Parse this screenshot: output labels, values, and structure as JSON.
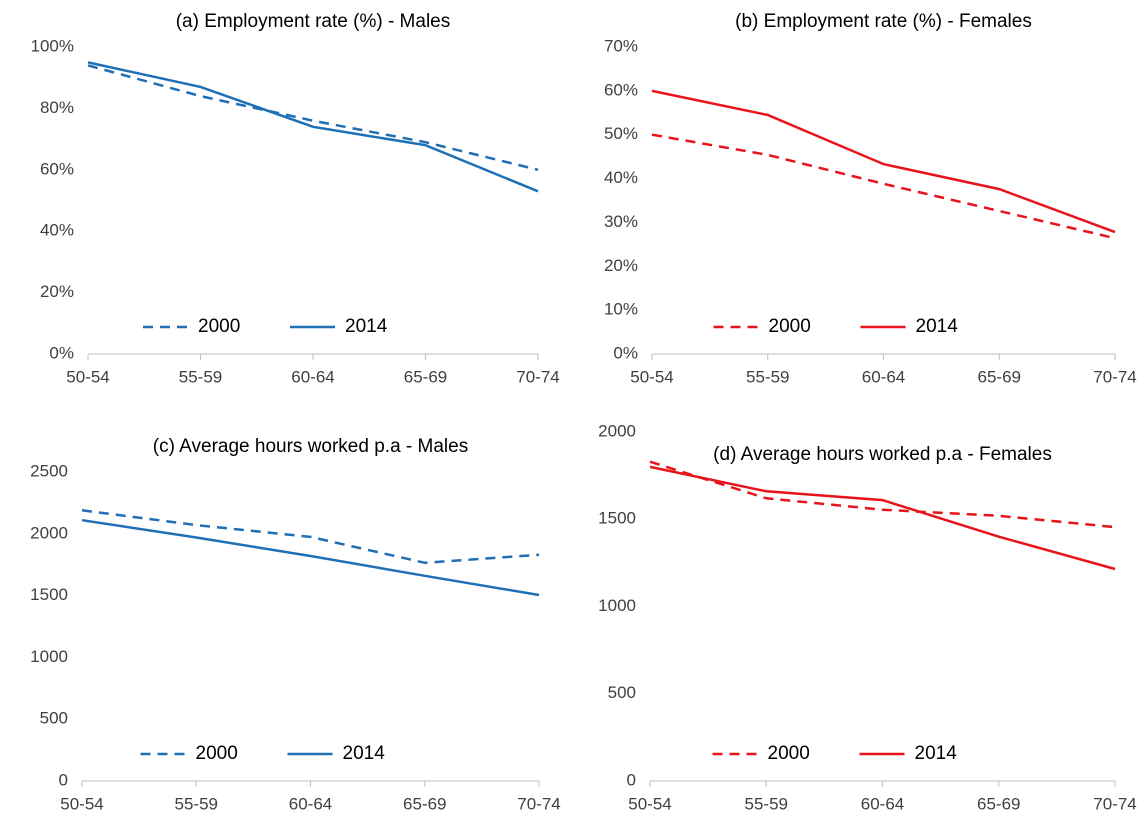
{
  "chart_data": [
    {
      "type": "line",
      "title": "(a) Employment rate (%) - Males",
      "categories": [
        "50-54",
        "55-59",
        "60-64",
        "65-69",
        "70-74"
      ],
      "series": [
        {
          "name": "2000",
          "color": "#1f6fb5",
          "line_style": "dashed",
          "values": [
            94,
            84,
            76,
            69,
            60
          ]
        },
        {
          "name": "2014",
          "color": "#1f6fb5",
          "line_style": "solid",
          "values": [
            95,
            87,
            74,
            68,
            53
          ]
        }
      ],
      "ylim": [
        0,
        100
      ],
      "yticks": [
        {
          "value": 0,
          "label": "0%"
        },
        {
          "value": 20,
          "label": "20%"
        },
        {
          "value": 40,
          "label": "40%"
        },
        {
          "value": 60,
          "label": "60%"
        },
        {
          "value": 80,
          "label": "80%"
        },
        {
          "value": 100,
          "label": "100%"
        }
      ],
      "grid": false,
      "legend": "lower center"
    },
    {
      "type": "line",
      "title": "(b) Employment rate (%) - Females",
      "categories": [
        "50-54",
        "55-59",
        "60-64",
        "65-69",
        "70-74"
      ],
      "series": [
        {
          "name": "2000",
          "color": "#e8141b",
          "line_style": "dashed",
          "values": [
            50,
            45.4,
            38.8,
            32.6,
            26.4
          ]
        },
        {
          "name": "2014",
          "color": "#e8141b",
          "line_style": "solid",
          "values": [
            60,
            54.5,
            43.3,
            37.6,
            27.8
          ]
        }
      ],
      "ylim": [
        0,
        70
      ],
      "yticks": [
        {
          "value": 0,
          "label": "0%"
        },
        {
          "value": 10,
          "label": "10%"
        },
        {
          "value": 20,
          "label": "20%"
        },
        {
          "value": 30,
          "label": "30%"
        },
        {
          "value": 40,
          "label": "40%"
        },
        {
          "value": 50,
          "label": "50%"
        },
        {
          "value": 60,
          "label": "60%"
        },
        {
          "value": 70,
          "label": "70%"
        }
      ],
      "grid": false,
      "legend": "lower center"
    },
    {
      "type": "line",
      "title": "(c) Average hours worked p.a - Males",
      "categories": [
        "50-54",
        "55-59",
        "60-64",
        "65-69",
        "70-74"
      ],
      "series": [
        {
          "name": "2000",
          "color": "#1f6fb5",
          "line_style": "dashed",
          "values": [
            2190,
            2070,
            1975,
            1765,
            1830
          ]
        },
        {
          "name": "2014",
          "color": "#1f6fb5",
          "line_style": "solid",
          "values": [
            2110,
            1970,
            1820,
            1660,
            1505
          ]
        }
      ],
      "ylim": [
        0,
        2500
      ],
      "yticks": [
        0,
        500,
        1000,
        1500,
        2000,
        2500
      ],
      "grid": false,
      "legend": "lower center"
    },
    {
      "type": "line",
      "title": "(d) Average hours worked p.a - Females",
      "categories": [
        "50-54",
        "55-59",
        "60-64",
        "65-69",
        "70-74"
      ],
      "series": [
        {
          "name": "2000",
          "color": "#e8141b",
          "line_style": "dashed",
          "values": [
            1830,
            1620,
            1555,
            1520,
            1455
          ]
        },
        {
          "name": "2014",
          "color": "#e8141b",
          "line_style": "solid",
          "values": [
            1800,
            1660,
            1610,
            1400,
            1215
          ]
        }
      ],
      "ylim": [
        0,
        2000
      ],
      "yticks": [
        0,
        500,
        1000,
        1500,
        2000
      ],
      "grid": false,
      "legend": "lower center"
    }
  ]
}
